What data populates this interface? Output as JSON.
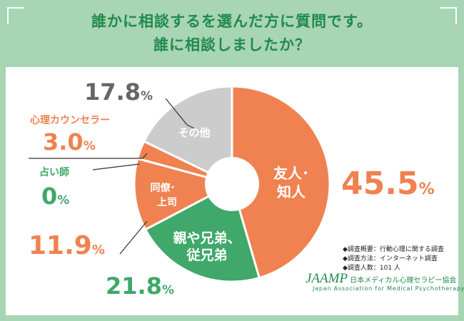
{
  "header": {
    "title_line1": "誰かに相談するを選んだ方に質問です。",
    "title_line2": "誰に相談しましたか？"
  },
  "chart_data": {
    "type": "pie",
    "title": "誰に相談しましたか？",
    "unit": "%",
    "slices": [
      {
        "label": "友人･知人",
        "value": 45.5,
        "value_text": "45.5",
        "color": "#ef8250"
      },
      {
        "label": "親や兄弟、従兄弟",
        "value": 21.8,
        "value_text": "21.8",
        "color": "#3fa86a"
      },
      {
        "label": "同僚･上司",
        "value": 11.9,
        "value_text": "11.9",
        "color": "#ef8250"
      },
      {
        "label": "占い師",
        "value": 0,
        "value_text": "0",
        "color": "#3fa86a"
      },
      {
        "label": "心理カウンセラー",
        "value": 3.0,
        "value_text": "3.0",
        "color": "#ef8250"
      },
      {
        "label": "その他",
        "value": 17.8,
        "value_text": "17.8",
        "color": "#cccccc"
      }
    ]
  },
  "labels": {
    "friends_inner_1": "友人･",
    "friends_inner_2": "知人",
    "family_inner_1": "親や兄弟、",
    "family_inner_2": "従兄弟",
    "colleague_inner_1": "同僚･",
    "colleague_inner_2": "上司",
    "other_inner": "その他",
    "counselor_name": "心理カウンセラー",
    "fortune_name": "占い師",
    "percent": "%"
  },
  "footnotes": {
    "line1": "◆調査概要：行動心理に関する調査",
    "line2": "◆調査方法：インターネット調査",
    "line3": "◆調査人数：101 人"
  },
  "logo": {
    "main": "JAAMP",
    "jp": "日本メディカル心理セラピー協会",
    "en": "Japan Association for Medical Psychotherapy"
  },
  "colors": {
    "orange": "#ef8250",
    "green": "#3fa86a",
    "gray": "#cccccc",
    "text_gray": "#666666",
    "background": "#a8d5b4"
  }
}
